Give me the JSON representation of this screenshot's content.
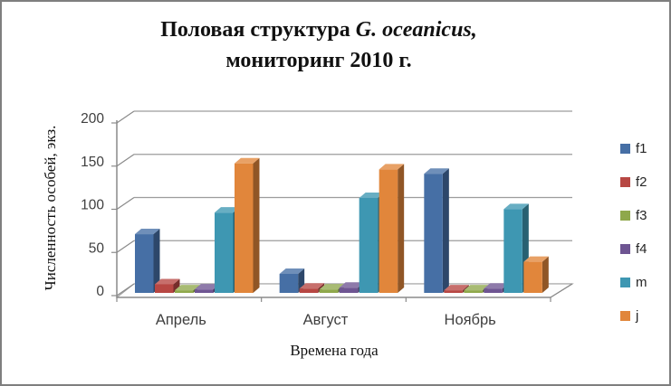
{
  "window": {
    "background": "#ffffff",
    "border_color": "#7f7f7f"
  },
  "title": {
    "line1_regular": "Половая структура ",
    "line1_italic": "G. oceanicus,",
    "line2": "мониторинг 2010 г."
  },
  "chart_data": {
    "type": "bar",
    "subtype": "3d-clustered-column",
    "title": "Половая структура G. oceanicus, мониторинг 2010 г.",
    "categories": [
      "Апрель",
      "Август",
      "Ноябрь"
    ],
    "series": [
      {
        "name": "f1",
        "color": "#466FA5",
        "values": [
          68,
          22,
          138
        ]
      },
      {
        "name": "f2",
        "color": "#B74743",
        "values": [
          10,
          5,
          3
        ]
      },
      {
        "name": "f3",
        "color": "#8FA84B",
        "values": [
          3,
          4,
          3
        ]
      },
      {
        "name": "f4",
        "color": "#6E5592",
        "values": [
          4,
          6,
          5
        ]
      },
      {
        "name": "m",
        "color": "#3E97B2",
        "values": [
          93,
          110,
          97
        ]
      },
      {
        "name": "j",
        "color": "#E1863B",
        "values": [
          150,
          143,
          36
        ]
      }
    ],
    "xlabel": "Времена года",
    "ylabel": "Численность особей, экз.",
    "ylim": [
      0,
      200
    ],
    "yticks": [
      0,
      50,
      100,
      150,
      200
    ],
    "grid": true,
    "legend_position": "right",
    "axis_text_color": "#3f3f3f",
    "gridline_color": "#9c9c9c",
    "axis_line_color": "#8a8a8a"
  }
}
